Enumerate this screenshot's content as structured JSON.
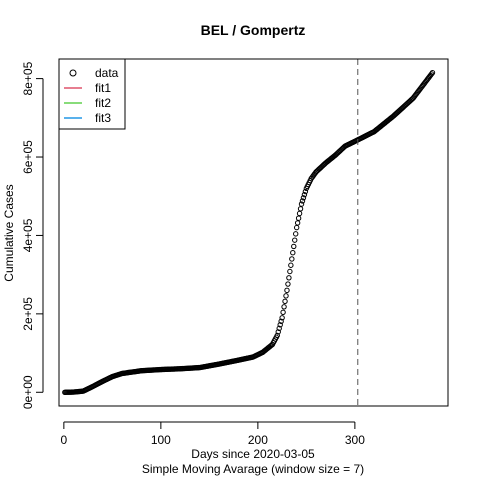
{
  "chart_data": {
    "type": "scatter",
    "title": "BEL / Gompertz",
    "xlabel": "Days since 2020-03-05",
    "xlabel2": "Simple Moving Avarage (window size = 7)",
    "ylabel": "Cumulative Cases",
    "xlim": [
      -5,
      396
    ],
    "ylim": [
      -35000,
      850000
    ],
    "x_ticks": [
      0,
      100,
      200,
      300
    ],
    "x_tick_labels": [
      "0",
      "100",
      "200",
      "300"
    ],
    "y_ticks": [
      0,
      200000,
      400000,
      600000,
      800000
    ],
    "y_tick_labels": [
      "0e+00",
      "2e+05",
      "4e+05",
      "6e+05",
      "8e+05"
    ],
    "vline_x": 303,
    "vline_style": "dashed",
    "legend_position": "top-left",
    "legend": [
      {
        "label": "data",
        "symbol": "circle",
        "color": "#000000"
      },
      {
        "label": "fit1",
        "symbol": "line",
        "color": "#DF536B"
      },
      {
        "label": "fit2",
        "symbol": "line",
        "color": "#61D04F"
      },
      {
        "label": "fit3",
        "symbol": "line",
        "color": "#2297E6"
      }
    ],
    "series": [
      {
        "name": "data",
        "x_range": [
          1,
          380
        ],
        "anchors": [
          [
            1,
            0
          ],
          [
            10,
            500
          ],
          [
            20,
            3000
          ],
          [
            30,
            15000
          ],
          [
            40,
            28000
          ],
          [
            50,
            40000
          ],
          [
            60,
            48000
          ],
          [
            80,
            55000
          ],
          [
            100,
            58000
          ],
          [
            120,
            60000
          ],
          [
            140,
            63000
          ],
          [
            160,
            72000
          ],
          [
            180,
            82000
          ],
          [
            195,
            90000
          ],
          [
            205,
            102000
          ],
          [
            215,
            122000
          ],
          [
            220,
            145000
          ],
          [
            225,
            190000
          ],
          [
            230,
            260000
          ],
          [
            235,
            340000
          ],
          [
            240,
            420000
          ],
          [
            245,
            480000
          ],
          [
            250,
            520000
          ],
          [
            255,
            545000
          ],
          [
            260,
            562000
          ],
          [
            270,
            585000
          ],
          [
            280,
            605000
          ],
          [
            290,
            628000
          ],
          [
            300,
            640000
          ],
          [
            320,
            665000
          ],
          [
            340,
            705000
          ],
          [
            360,
            750000
          ],
          [
            380,
            815000
          ]
        ]
      }
    ]
  }
}
